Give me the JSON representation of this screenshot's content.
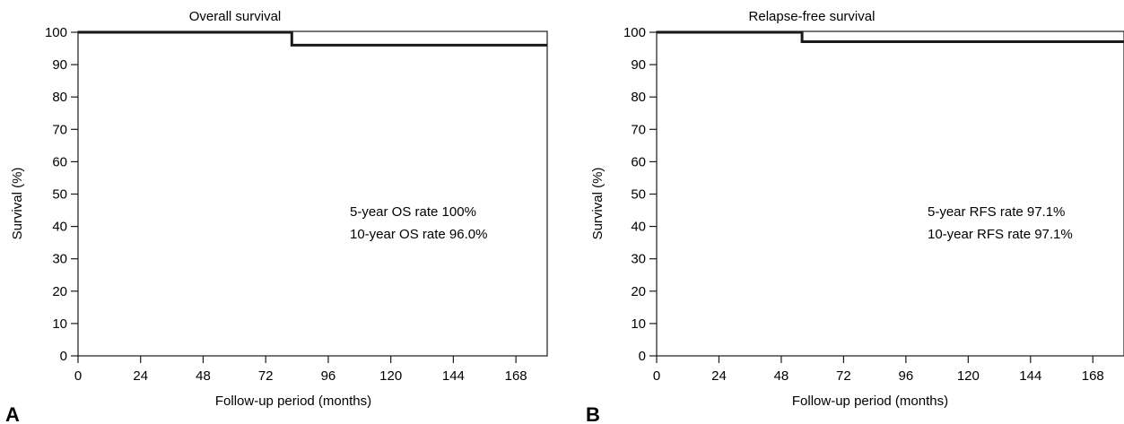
{
  "chart_data": [
    {
      "type": "line",
      "panel_label": "A",
      "title": "Overall survival",
      "xlabel": "Follow-up period (months)",
      "ylabel": "Survival (%)",
      "xlim": [
        0,
        180
      ],
      "ylim": [
        0,
        100
      ],
      "x_ticks": [
        0,
        24,
        48,
        72,
        96,
        120,
        144,
        168
      ],
      "y_ticks": [
        0,
        10,
        20,
        30,
        40,
        50,
        60,
        70,
        80,
        90,
        100
      ],
      "grid": false,
      "series": [
        {
          "x": [
            0,
            82,
            82,
            180
          ],
          "y": [
            100,
            100,
            96.0,
            96.0
          ]
        }
      ],
      "annotations": [
        "5-year OS rate  100%",
        "10-year OS rate  96.0%"
      ]
    },
    {
      "type": "line",
      "panel_label": "B",
      "title": "Relapse-free survival",
      "xlabel": "Follow-up period (months)",
      "ylabel": "Survival (%)",
      "xlim": [
        0,
        180
      ],
      "ylim": [
        0,
        100
      ],
      "x_ticks": [
        0,
        24,
        48,
        72,
        96,
        120,
        144,
        168
      ],
      "y_ticks": [
        0,
        10,
        20,
        30,
        40,
        50,
        60,
        70,
        80,
        90,
        100
      ],
      "grid": false,
      "series": [
        {
          "x": [
            0,
            56,
            56,
            180
          ],
          "y": [
            100,
            100,
            97.1,
            97.1
          ]
        }
      ],
      "annotations": [
        "5-year RFS rate  97.1%",
        "10-year RFS rate  97.1%"
      ]
    }
  ]
}
